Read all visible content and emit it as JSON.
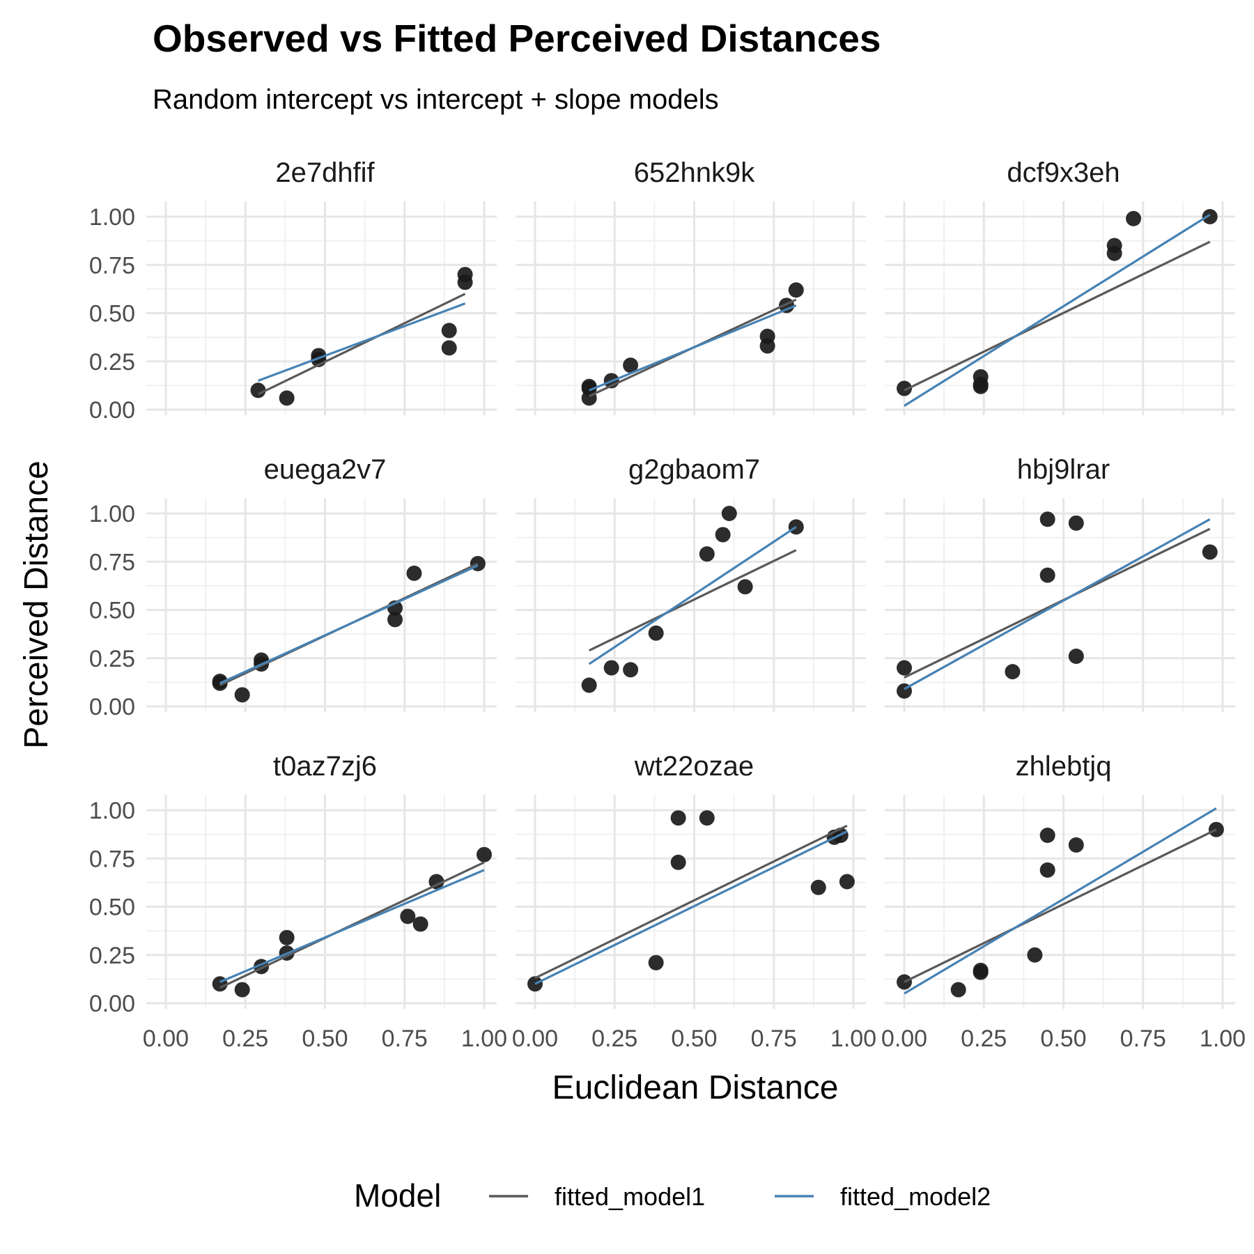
{
  "chart_data": {
    "type": "scatter",
    "title": "Observed vs Fitted Perceived Distances",
    "subtitle": "Random intercept vs intercept + slope models",
    "xlabel": "Euclidean Distance",
    "ylabel": "Perceived Distance",
    "xlim": [
      0,
      1
    ],
    "ylim": [
      0,
      1
    ],
    "x_ticks": [
      "0.00",
      "0.25",
      "0.50",
      "0.75",
      "1.00"
    ],
    "y_ticks": [
      "0.00",
      "0.25",
      "0.50",
      "0.75",
      "1.00"
    ],
    "grid": true,
    "legend": {
      "title": "Model",
      "position": "bottom",
      "entries": [
        {
          "name": "fitted_model1",
          "color": "#595959"
        },
        {
          "name": "fitted_model2",
          "color": "#4682B4"
        }
      ]
    },
    "point_color": "#1a1a1a",
    "panels": [
      {
        "name": "2e7dhfif",
        "points": [
          [
            0.29,
            0.1
          ],
          [
            0.38,
            0.06
          ],
          [
            0.48,
            0.28
          ],
          [
            0.48,
            0.26
          ],
          [
            0.89,
            0.41
          ],
          [
            0.89,
            0.32
          ],
          [
            0.94,
            0.7
          ],
          [
            0.94,
            0.66
          ]
        ],
        "fitted_model1": [
          [
            0.29,
            0.08
          ],
          [
            0.94,
            0.6
          ]
        ],
        "fitted_model2": [
          [
            0.29,
            0.15
          ],
          [
            0.94,
            0.55
          ]
        ]
      },
      {
        "name": "652hnk9k",
        "points": [
          [
            0.17,
            0.06
          ],
          [
            0.17,
            0.12
          ],
          [
            0.17,
            0.11
          ],
          [
            0.24,
            0.15
          ],
          [
            0.3,
            0.23
          ],
          [
            0.73,
            0.38
          ],
          [
            0.73,
            0.33
          ],
          [
            0.79,
            0.54
          ],
          [
            0.82,
            0.62
          ]
        ],
        "fitted_model1": [
          [
            0.17,
            0.07
          ],
          [
            0.82,
            0.57
          ]
        ],
        "fitted_model2": [
          [
            0.17,
            0.1
          ],
          [
            0.82,
            0.54
          ]
        ]
      },
      {
        "name": "dcf9x3eh",
        "points": [
          [
            0.0,
            0.11
          ],
          [
            0.24,
            0.17
          ],
          [
            0.24,
            0.12
          ],
          [
            0.24,
            0.13
          ],
          [
            0.66,
            0.85
          ],
          [
            0.66,
            0.81
          ],
          [
            0.72,
            0.99
          ],
          [
            0.96,
            1.0
          ]
        ],
        "fitted_model1": [
          [
            0.0,
            0.1
          ],
          [
            0.96,
            0.87
          ]
        ],
        "fitted_model2": [
          [
            0.0,
            0.02
          ],
          [
            0.96,
            1.01
          ]
        ]
      },
      {
        "name": "euega2v7",
        "points": [
          [
            0.17,
            0.13
          ],
          [
            0.17,
            0.12
          ],
          [
            0.24,
            0.06
          ],
          [
            0.3,
            0.24
          ],
          [
            0.3,
            0.22
          ],
          [
            0.72,
            0.51
          ],
          [
            0.72,
            0.45
          ],
          [
            0.78,
            0.69
          ],
          [
            0.98,
            0.74
          ]
        ],
        "fitted_model1": [
          [
            0.17,
            0.11
          ],
          [
            0.98,
            0.74
          ]
        ],
        "fitted_model2": [
          [
            0.17,
            0.12
          ],
          [
            0.98,
            0.73
          ]
        ]
      },
      {
        "name": "g2gbaom7",
        "points": [
          [
            0.17,
            0.11
          ],
          [
            0.24,
            0.2
          ],
          [
            0.3,
            0.19
          ],
          [
            0.38,
            0.38
          ],
          [
            0.54,
            0.79
          ],
          [
            0.59,
            0.89
          ],
          [
            0.61,
            1.0
          ],
          [
            0.66,
            0.62
          ],
          [
            0.82,
            0.93
          ]
        ],
        "fitted_model1": [
          [
            0.17,
            0.29
          ],
          [
            0.82,
            0.81
          ]
        ],
        "fitted_model2": [
          [
            0.17,
            0.22
          ],
          [
            0.82,
            0.93
          ]
        ]
      },
      {
        "name": "hbj9lrar",
        "points": [
          [
            0.0,
            0.2
          ],
          [
            0.0,
            0.08
          ],
          [
            0.34,
            0.18
          ],
          [
            0.45,
            0.97
          ],
          [
            0.45,
            0.68
          ],
          [
            0.54,
            0.95
          ],
          [
            0.54,
            0.26
          ],
          [
            0.96,
            0.8
          ]
        ],
        "fitted_model1": [
          [
            0.0,
            0.15
          ],
          [
            0.96,
            0.92
          ]
        ],
        "fitted_model2": [
          [
            0.0,
            0.09
          ],
          [
            0.96,
            0.97
          ]
        ]
      },
      {
        "name": "t0az7zj6",
        "points": [
          [
            0.17,
            0.1
          ],
          [
            0.24,
            0.07
          ],
          [
            0.3,
            0.19
          ],
          [
            0.38,
            0.34
          ],
          [
            0.38,
            0.26
          ],
          [
            0.76,
            0.45
          ],
          [
            0.8,
            0.41
          ],
          [
            0.85,
            0.63
          ],
          [
            1.0,
            0.77
          ]
        ],
        "fitted_model1": [
          [
            0.17,
            0.08
          ],
          [
            1.0,
            0.73
          ]
        ],
        "fitted_model2": [
          [
            0.17,
            0.11
          ],
          [
            1.0,
            0.69
          ]
        ]
      },
      {
        "name": "wt22ozae",
        "points": [
          [
            0.0,
            0.1
          ],
          [
            0.38,
            0.21
          ],
          [
            0.45,
            0.96
          ],
          [
            0.45,
            0.73
          ],
          [
            0.54,
            0.96
          ],
          [
            0.89,
            0.6
          ],
          [
            0.94,
            0.86
          ],
          [
            0.96,
            0.87
          ],
          [
            0.98,
            0.63
          ]
        ],
        "fitted_model1": [
          [
            0.0,
            0.13
          ],
          [
            0.98,
            0.92
          ]
        ],
        "fitted_model2": [
          [
            0.0,
            0.1
          ],
          [
            0.98,
            0.89
          ]
        ]
      },
      {
        "name": "zhlebtjq",
        "points": [
          [
            0.0,
            0.11
          ],
          [
            0.17,
            0.07
          ],
          [
            0.24,
            0.16
          ],
          [
            0.24,
            0.17
          ],
          [
            0.41,
            0.25
          ],
          [
            0.45,
            0.87
          ],
          [
            0.45,
            0.69
          ],
          [
            0.54,
            0.82
          ],
          [
            0.98,
            0.9
          ]
        ],
        "fitted_model1": [
          [
            0.0,
            0.11
          ],
          [
            0.98,
            0.9
          ]
        ],
        "fitted_model2": [
          [
            0.0,
            0.05
          ],
          [
            0.98,
            1.01
          ]
        ]
      }
    ]
  }
}
